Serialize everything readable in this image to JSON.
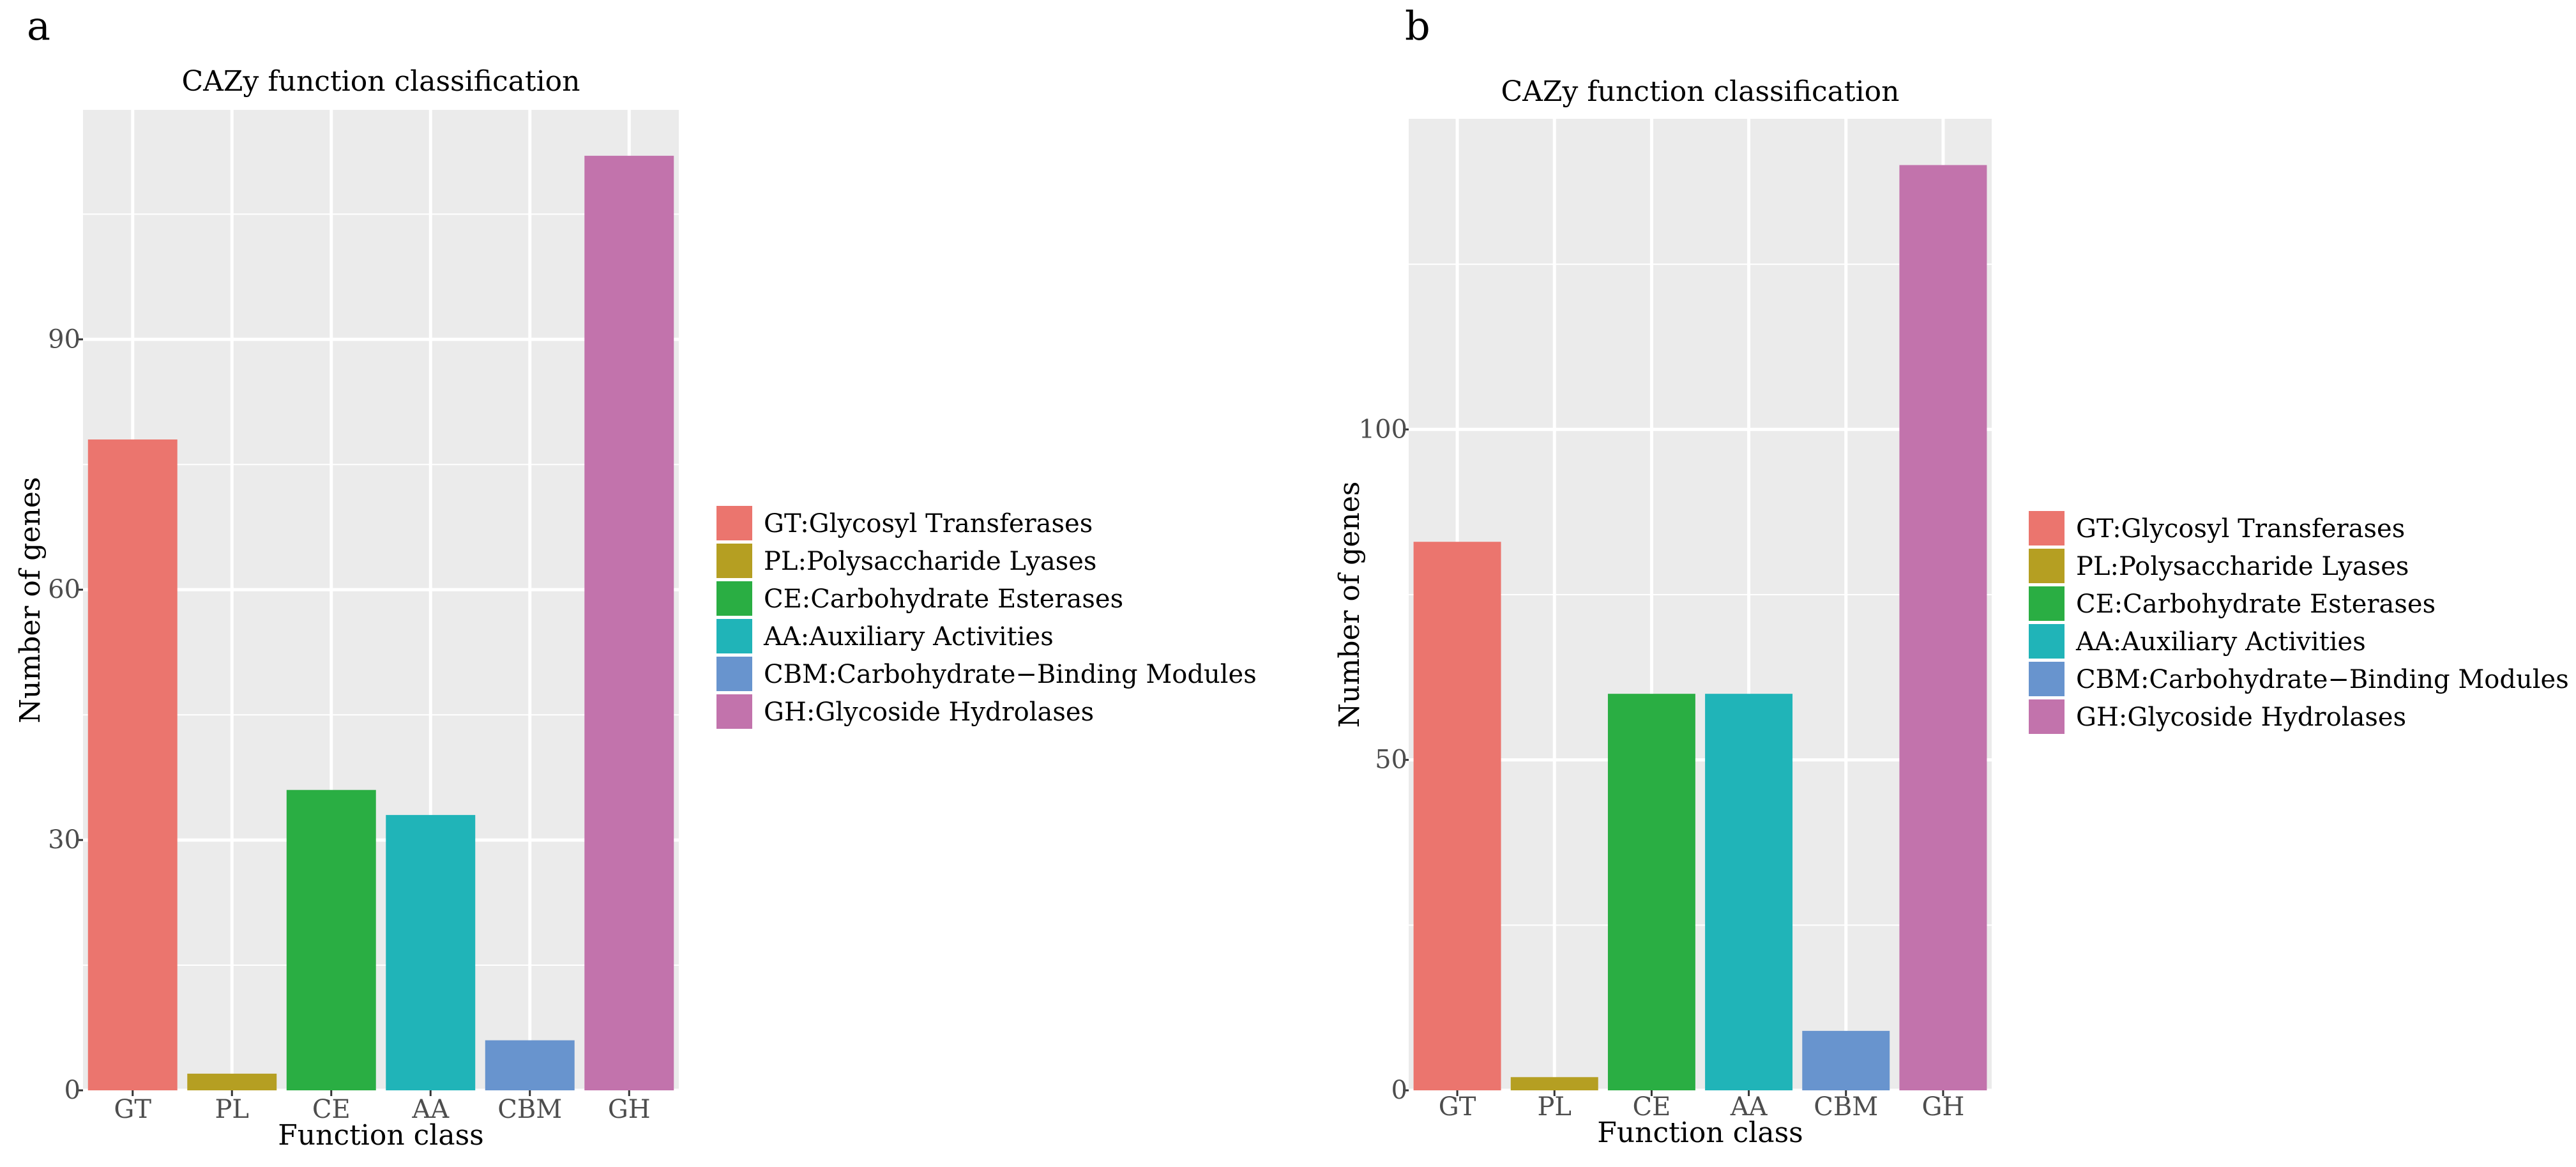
{
  "chart_data": [
    {
      "panel": "a",
      "type": "bar",
      "title": "CAZy function classification",
      "xlabel": "Function class",
      "ylabel": "Number of genes",
      "categories": [
        "GT",
        "PL",
        "CE",
        "AA",
        "CBM",
        "GH"
      ],
      "values": [
        78,
        2,
        36,
        33,
        6,
        112
      ],
      "ylim": [
        0,
        117.5
      ],
      "yticks": [
        0,
        30,
        60,
        90
      ],
      "ytick_labels": [
        "0",
        "30",
        "60",
        "90"
      ],
      "grid": true,
      "legend_position": "right",
      "legend": [
        "GT:Glycosyl Transferases",
        "PL:Polysaccharide Lyases",
        "CE:Carbohydrate Esterases",
        "AA:Auxiliary Activities",
        "CBM:Carbohydrate−Binding Modules",
        "GH:Glycoside Hydrolases"
      ]
    },
    {
      "panel": "b",
      "type": "bar",
      "title": "CAZy function classification",
      "xlabel": "Function class",
      "ylabel": "Number of genes",
      "categories": [
        "GT",
        "PL",
        "CE",
        "AA",
        "CBM",
        "GH"
      ],
      "values": [
        83,
        2,
        60,
        60,
        9,
        140
      ],
      "ylim": [
        0,
        147
      ],
      "yticks": [
        0,
        50,
        100
      ],
      "ytick_labels": [
        "0",
        "50",
        "100"
      ],
      "grid": true,
      "legend_position": "right",
      "legend": [
        "GT:Glycosyl Transferases",
        "PL:Polysaccharide Lyases",
        "CE:Carbohydrate Esterases",
        "AA:Auxiliary Activities",
        "CBM:Carbohydrate−Binding Modules",
        "GH:Glycoside Hydrolases"
      ]
    }
  ],
  "colors": [
    "#EB756E",
    "#B59F22",
    "#2AAE43",
    "#20B4B8",
    "#6894CE",
    "#C273AC"
  ],
  "panel_background": "#EBEBEB",
  "grid_color": "#FFFFFF"
}
